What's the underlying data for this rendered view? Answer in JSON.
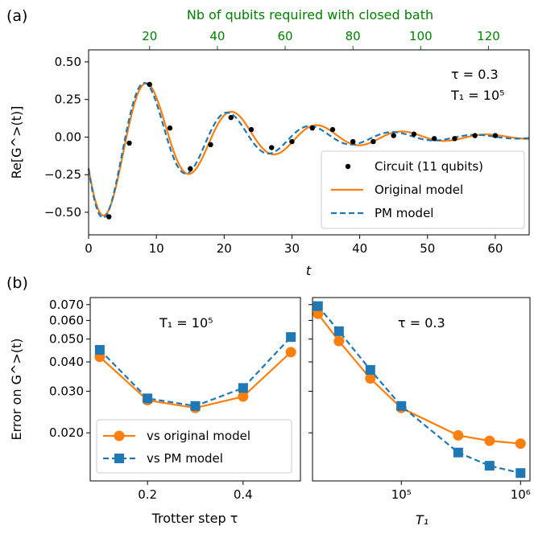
{
  "panels": {
    "a_label": "(a)",
    "b_label": "(b)"
  },
  "colors": {
    "original": "#ff7f0e",
    "pm": "#1f77b4",
    "circuit": "#000000",
    "top_axis": "#008000"
  },
  "chart_data": [
    {
      "id": "panel-a",
      "type": "line",
      "xlabel": "t",
      "ylabel": "Re[G^>(t)]",
      "top_xlabel": "Nb of qubits required with closed bath",
      "top_ticks": [
        "20",
        "40",
        "60",
        "80",
        "100",
        "120"
      ],
      "top_tick_at_t": [
        9,
        19,
        29,
        39,
        49,
        59
      ],
      "xlim": [
        0,
        65
      ],
      "ylim": [
        -0.65,
        0.58
      ],
      "xticks": [
        0,
        10,
        20,
        30,
        40,
        50,
        60
      ],
      "yticks": [
        -0.5,
        -0.25,
        0.0,
        0.25,
        0.5
      ],
      "ytick_labels": [
        "−0.50",
        "−0.25",
        "0.00",
        "0.25",
        "0.50"
      ],
      "annotation_tau": "τ = 0.3",
      "annotation_T1": "T₁ = 10⁵",
      "legend_position": "lower-right",
      "series": [
        {
          "name": "Circuit (11 qubits)",
          "style": "points",
          "x": [
            3,
            6,
            9,
            12,
            15,
            18,
            21,
            24,
            27,
            30,
            33,
            36,
            39,
            42,
            45,
            48,
            51,
            54,
            57,
            60
          ],
          "y": [
            -0.53,
            -0.04,
            0.35,
            0.06,
            -0.21,
            -0.05,
            0.13,
            0.05,
            -0.07,
            -0.03,
            0.06,
            0.05,
            -0.03,
            -0.03,
            0.01,
            0.02,
            -0.01,
            -0.01,
            0.01,
            0.01
          ]
        },
        {
          "name": "Original model",
          "style": "solid",
          "formula": {
            "amp": -0.6,
            "decay": 0.06,
            "omega": 0.5,
            "phase": 0.35,
            "t_max": 65
          }
        },
        {
          "name": "PM model",
          "style": "dashed",
          "formula": {
            "amp": -0.62,
            "decay": 0.065,
            "omega": 0.515,
            "phase": 0.35,
            "t_max": 65
          }
        }
      ]
    },
    {
      "id": "panel-b-left",
      "type": "line",
      "xlabel": "Trotter step τ",
      "ylabel": "Error on G^>(t)",
      "yscale": "log",
      "xlim": [
        0.08,
        0.52
      ],
      "ylim": [
        0.0125,
        0.075
      ],
      "xticks": [
        0.2,
        0.4
      ],
      "xtick_labels": [
        "0.2",
        "0.4"
      ],
      "yticks": [
        0.02,
        0.03,
        0.04,
        0.05,
        0.06,
        0.07
      ],
      "ytick_labels": [
        "0.020",
        "0.030",
        "0.040",
        "0.050",
        "0.060",
        "0.070"
      ],
      "annotation": "T₁ = 10⁵",
      "legend_position": "lower-left",
      "series": [
        {
          "name": "vs original model",
          "marker": "circle",
          "style": "solid",
          "x": [
            0.1,
            0.2,
            0.3,
            0.4,
            0.5
          ],
          "y": [
            0.042,
            0.0275,
            0.0255,
            0.0285,
            0.044
          ]
        },
        {
          "name": "vs PM model",
          "marker": "square",
          "style": "dashed",
          "x": [
            0.1,
            0.2,
            0.3,
            0.4,
            0.5
          ],
          "y": [
            0.045,
            0.028,
            0.026,
            0.031,
            0.051
          ]
        }
      ]
    },
    {
      "id": "panel-b-right",
      "type": "line",
      "xlabel": "T₁",
      "xscale": "log",
      "yscale": "log",
      "xlim": [
        18000,
        1200000
      ],
      "ylim": [
        0.0125,
        0.075
      ],
      "xticks": [
        100000,
        1000000
      ],
      "xtick_labels": [
        "10⁵",
        "10⁶"
      ],
      "annotation": "τ = 0.3",
      "series": [
        {
          "name": "vs original model",
          "marker": "circle",
          "style": "solid",
          "x": [
            20000,
            30000,
            55000,
            100000,
            300000,
            550000,
            1000000
          ],
          "y": [
            0.064,
            0.049,
            0.034,
            0.0255,
            0.0195,
            0.0185,
            0.018
          ]
        },
        {
          "name": "vs PM model",
          "marker": "square",
          "style": "dashed",
          "x": [
            20000,
            30000,
            55000,
            100000,
            300000,
            550000,
            1000000
          ],
          "y": [
            0.069,
            0.054,
            0.037,
            0.026,
            0.0165,
            0.0145,
            0.0135
          ]
        }
      ]
    }
  ]
}
